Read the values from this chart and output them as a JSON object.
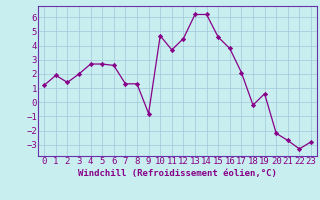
{
  "x": [
    0,
    1,
    2,
    3,
    4,
    5,
    6,
    7,
    8,
    9,
    10,
    11,
    12,
    13,
    14,
    15,
    16,
    17,
    18,
    19,
    20,
    21,
    22,
    23
  ],
  "y": [
    1.2,
    1.9,
    1.4,
    2.0,
    2.7,
    2.7,
    2.6,
    1.3,
    1.3,
    -0.8,
    4.7,
    3.7,
    4.5,
    6.2,
    6.2,
    4.6,
    3.8,
    2.1,
    -0.2,
    0.6,
    -2.2,
    -2.7,
    -3.3,
    -2.8
  ],
  "line_color": "#880088",
  "marker": "D",
  "marker_size": 2.2,
  "bg_color": "#c8eef0",
  "grid_color": "#a0c8d8",
  "xlabel": "Windchill (Refroidissement éolien,°C)",
  "ylim": [
    -3.8,
    6.8
  ],
  "xlim": [
    -0.5,
    23.5
  ],
  "yticks": [
    -3,
    -2,
    -1,
    0,
    1,
    2,
    3,
    4,
    5,
    6
  ],
  "xticks": [
    0,
    1,
    2,
    3,
    4,
    5,
    6,
    7,
    8,
    9,
    10,
    11,
    12,
    13,
    14,
    15,
    16,
    17,
    18,
    19,
    20,
    21,
    22,
    23
  ],
  "xlabel_fontsize": 6.5,
  "tick_fontsize": 6.5,
  "tick_color": "#880088",
  "label_color": "#880088",
  "spine_color": "#6633aa"
}
